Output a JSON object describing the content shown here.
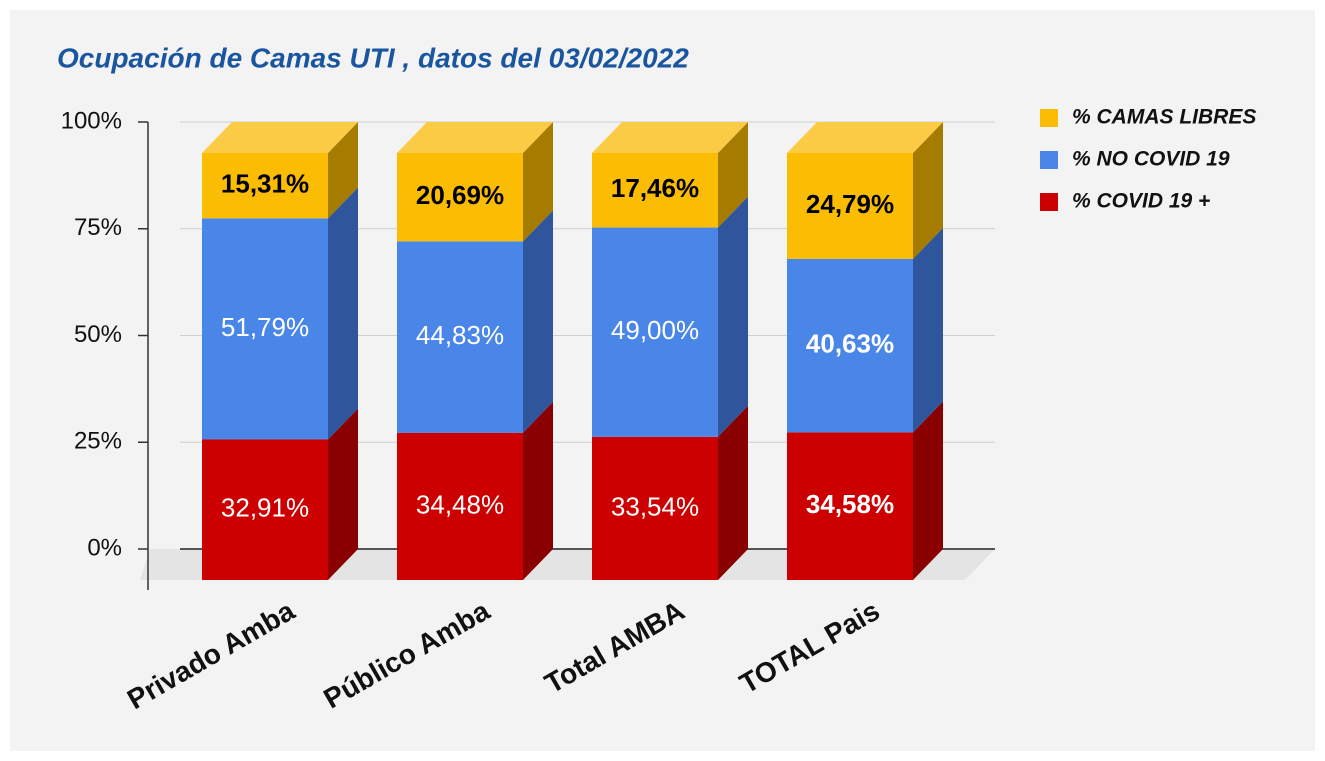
{
  "chart_data": {
    "type": "bar3d_stacked",
    "title": "Ocupación de Camas UTI , datos del 03/02/2022",
    "categories": [
      "Privado Amba",
      "Público Amba",
      "Total AMBA",
      "TOTAL Pais"
    ],
    "series": [
      {
        "name": "% COVID 19 +",
        "color": "#cc0000",
        "side_color": "#8a0000",
        "label_color": "#ffffff",
        "values": [
          32.91,
          34.48,
          33.54,
          34.58
        ],
        "value_labels": [
          "32,91%",
          "34,48%",
          "33,54%",
          "34,58%"
        ]
      },
      {
        "name": "% NO COVID 19",
        "color": "#4a86e8",
        "side_color": "#2f569c",
        "label_color": "#ffffff",
        "values": [
          51.79,
          44.83,
          49.0,
          40.63
        ],
        "value_labels": [
          "51,79%",
          "44,83%",
          "49,00%",
          "40,63%"
        ]
      },
      {
        "name": "% CAMAS LIBRES",
        "color": "#fbbc04",
        "side_color": "#a67c00",
        "top_color": "#fccb45",
        "label_color": "#000000",
        "values": [
          15.31,
          20.69,
          17.46,
          24.79
        ],
        "value_labels": [
          "15,31%",
          "20,69%",
          "17,46%",
          "24,79%"
        ]
      }
    ],
    "ylim": [
      0,
      100
    ],
    "yticks": [
      {
        "value": 0,
        "label": "0%"
      },
      {
        "value": 25,
        "label": "25%"
      },
      {
        "value": 50,
        "label": "50%"
      },
      {
        "value": 75,
        "label": "75%"
      },
      {
        "value": 100,
        "label": "100%"
      }
    ],
    "grid": true,
    "legend": "right"
  }
}
